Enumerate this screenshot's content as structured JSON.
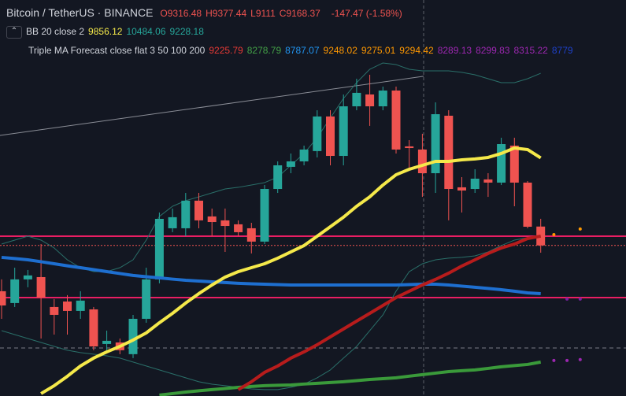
{
  "header": {
    "symbol": "Bitcoin / TetherUS · BINANCE",
    "ohlc": [
      {
        "label": "O",
        "value": 9316.48
      },
      {
        "label": "H",
        "value": 9377.44
      },
      {
        "label": "L",
        "value": 9111.0
      },
      {
        "label": "C",
        "value": 9168.37
      }
    ],
    "change": "-147.47 (-1.58%)"
  },
  "indicators": [
    {
      "title": "BB 20 close 2",
      "values": [
        9856.12,
        10484.06,
        9228.18
      ],
      "colors": [
        "#f5e94a",
        "#26a69a",
        "#26a69a"
      ]
    },
    {
      "title": "Triple MA Forecast close flat 3 50 100 200",
      "values": [
        9225.79,
        8278.79,
        8787.07,
        9248.02,
        9275.01,
        9294.42,
        8289.13,
        8299.83,
        8315.22,
        8779
      ],
      "colors": [
        "#e53935",
        "#43a047",
        "#2196f3",
        "#ff9800",
        "#ff9800",
        "#ff9800",
        "#9c27b0",
        "#9c27b0",
        "#9c27b0",
        "#1e40c8"
      ]
    }
  ],
  "chart_data": {
    "type": "candlestick",
    "categories": [
      null,
      null,
      null,
      null,
      null,
      null,
      null,
      null,
      null,
      null,
      null,
      null,
      null,
      null,
      null,
      null,
      null,
      null,
      null,
      null,
      null,
      null,
      null,
      null,
      null,
      null,
      null,
      null,
      null,
      null,
      null,
      null,
      null,
      null,
      null,
      null,
      null,
      null,
      null,
      null,
      null,
      null,
      null,
      null,
      null
    ],
    "ylim": [
      7984,
      11098
    ],
    "up_color": "#26a69a",
    "down_color": "#ef5350",
    "open": [
      8808,
      8715,
      8901,
      8919,
      8684,
      8727,
      8653,
      8665,
      8393,
      8405,
      8313,
      8591,
      8901,
      9303,
      9303,
      9520,
      9396,
      9365,
      9334,
      9303,
      9198,
      9612,
      9786,
      9829,
      9910,
      10182,
      9872,
      10262,
      10355,
      10262,
      10386,
      9947,
      9922,
      9736,
      10188,
      9625,
      9612,
      9687,
      9662,
      9953,
      9662,
      9316.48,
      null,
      null,
      null
    ],
    "high": [
      8901,
      8993,
      8975,
      9179,
      8746,
      8777,
      8808,
      8684,
      8498,
      8436,
      8622,
      8993,
      9427,
      9458,
      9581,
      9581,
      9458,
      9458,
      9365,
      9346,
      9643,
      9829,
      9891,
      9953,
      10231,
      10231,
      10355,
      10479,
      10510,
      10417,
      10417,
      9996,
      10046,
      10293,
      10231,
      9705,
      9767,
      9736,
      10015,
      10015,
      9674,
      9377.44,
      null,
      null,
      null
    ],
    "low": [
      8591,
      8684,
      8839,
      8436,
      8467,
      8467,
      8591,
      8344,
      8344,
      8313,
      8282,
      8560,
      8870,
      9272,
      9241,
      9303,
      9241,
      9117,
      9241,
      9105,
      9179,
      9581,
      9736,
      9798,
      9860,
      9798,
      9798,
      10231,
      10108,
      10231,
      9891,
      9767,
      9550,
      9581,
      9365,
      9427,
      9581,
      9550,
      9643,
      9476,
      9303,
      9111.0,
      null,
      null,
      null
    ],
    "close": [
      8696,
      8901,
      8932,
      8758,
      8622,
      8653,
      8734,
      8374,
      8418,
      8344,
      8591,
      8901,
      9377,
      9390,
      9520,
      9365,
      9352,
      9321,
      9272,
      9198,
      9612,
      9798,
      9829,
      9922,
      10182,
      9872,
      10262,
      10368,
      10262,
      10386,
      9922,
      9934,
      9736,
      10200,
      9612,
      9600,
      9693,
      9662,
      9965,
      9662,
      9315,
      9168.37,
      null,
      null,
      null
    ],
    "series": [
      {
        "color": "#2a6f69",
        "width": 1,
        "style": "line",
        "values": [
          9179,
          9210,
          9241,
          9210,
          9148,
          9055,
          8993,
          8962,
          8962,
          8993,
          9055,
          9210,
          9396,
          9476,
          9520,
          9550,
          9581,
          9612,
          9625,
          9643,
          9662,
          9705,
          9798,
          9891,
          10015,
          10170,
          10324,
          10448,
          10553,
          10603,
          10590,
          10553,
          10541,
          10541,
          10541,
          10529,
          10510,
          10479,
          10448,
          10448,
          10479,
          10522,
          null,
          null,
          null
        ]
      },
      {
        "color": "#2a6f69",
        "width": 1,
        "style": "line",
        "values": [
          8498,
          8467,
          8436,
          8405,
          8374,
          8344,
          8325,
          8313,
          8300,
          8282,
          8251,
          8220,
          8189,
          8158,
          8127,
          8096,
          8077,
          8065,
          8052,
          8040,
          8034,
          8034,
          8052,
          8077,
          8127,
          8189,
          8282,
          8374,
          8498,
          8622,
          8808,
          8962,
          9024,
          9055,
          9068,
          9074,
          9086,
          9117,
          9167,
          9210,
          9229,
          9241,
          null,
          null,
          null
        ]
      },
      {
        "color": "#1e6fd0",
        "width": 4,
        "style": "line",
        "values": [
          9074,
          9065,
          9055,
          9040,
          9024,
          9008,
          8993,
          8978,
          8962,
          8947,
          8932,
          8922,
          8913,
          8903,
          8894,
          8888,
          8882,
          8876,
          8870,
          8866,
          8863,
          8860,
          8857,
          8857,
          8857,
          8857,
          8857,
          8857,
          8857,
          8857,
          8857,
          8860,
          8863,
          8863,
          8857,
          8848,
          8839,
          8830,
          8820,
          8808,
          8795,
          8789,
          null,
          null,
          null
        ]
      },
      {
        "color": "#3a9a3a",
        "width": 4,
        "style": "line",
        "values": [
          null,
          null,
          null,
          null,
          null,
          null,
          null,
          null,
          null,
          null,
          null,
          null,
          7991,
          8003,
          8015,
          8025,
          8034,
          8043,
          8052,
          8059,
          8065,
          8068,
          8071,
          8078,
          8084,
          8090,
          8096,
          8105,
          8114,
          8120,
          8127,
          8140,
          8152,
          8164,
          8176,
          8183,
          8189,
          8201,
          8214,
          8223,
          8232,
          8251,
          null,
          null,
          null
        ]
      },
      {
        "color": "#b71c1c",
        "width": 4,
        "style": "line",
        "values": [
          null,
          null,
          null,
          null,
          null,
          null,
          null,
          null,
          null,
          null,
          null,
          null,
          null,
          null,
          null,
          null,
          null,
          null,
          8034,
          8096,
          8170,
          8220,
          8282,
          8331,
          8387,
          8449,
          8511,
          8573,
          8634,
          8696,
          8758,
          8808,
          8857,
          8901,
          8950,
          9006,
          9055,
          9105,
          9148,
          9179,
          9222,
          9241,
          null,
          null,
          null
        ]
      },
      {
        "color": "#f5e94a",
        "width": 4,
        "style": "line",
        "values": [
          null,
          null,
          null,
          8003,
          8065,
          8139,
          8220,
          8282,
          8331,
          8374,
          8424,
          8480,
          8560,
          8634,
          8715,
          8789,
          8857,
          8919,
          8962,
          8993,
          9024,
          9068,
          9117,
          9167,
          9241,
          9315,
          9390,
          9476,
          9550,
          9643,
          9724,
          9767,
          9798,
          9829,
          9829,
          9841,
          9848,
          9860,
          9891,
          9934,
          9922,
          9856,
          null,
          null,
          null
        ]
      },
      {
        "color": "#ff9800",
        "width": 3,
        "style": "dots",
        "values": [
          null,
          null,
          null,
          null,
          null,
          null,
          null,
          null,
          null,
          null,
          null,
          null,
          null,
          null,
          null,
          null,
          null,
          null,
          null,
          null,
          null,
          null,
          null,
          null,
          null,
          null,
          null,
          null,
          null,
          null,
          null,
          null,
          null,
          null,
          null,
          null,
          null,
          null,
          null,
          null,
          null,
          null,
          9253,
          null,
          9297
        ]
      },
      {
        "color": "#9c27b0",
        "width": 3,
        "style": "dots",
        "values": [
          null,
          null,
          null,
          null,
          null,
          null,
          null,
          null,
          null,
          null,
          null,
          null,
          null,
          null,
          null,
          null,
          null,
          null,
          null,
          null,
          null,
          null,
          null,
          null,
          null,
          null,
          null,
          null,
          null,
          null,
          null,
          null,
          null,
          null,
          null,
          null,
          null,
          null,
          null,
          null,
          null,
          null,
          8263,
          8263,
          8270
        ]
      },
      {
        "color": "#7b1fa2",
        "width": 3,
        "style": "dots",
        "values": [
          null,
          null,
          null,
          null,
          null,
          null,
          null,
          null,
          null,
          null,
          null,
          null,
          null,
          null,
          null,
          null,
          null,
          null,
          null,
          null,
          null,
          null,
          null,
          null,
          null,
          null,
          null,
          null,
          null,
          null,
          null,
          null,
          null,
          null,
          null,
          null,
          null,
          null,
          null,
          null,
          null,
          null,
          null,
          8746,
          8746
        ]
      }
    ],
    "hlines": [
      {
        "value": 9241,
        "color": "#e91e63",
        "style": "solid"
      },
      {
        "value": 8758,
        "color": "#e91e63",
        "style": "solid"
      },
      {
        "value": 9168.37,
        "color": "#ef5350",
        "style": "dotted"
      },
      {
        "value": 8362,
        "color": "#787b86",
        "style": "dashed"
      }
    ],
    "trend_line": {
      "color": "#8a8d96",
      "values": [
        10033,
        10498
      ]
    }
  }
}
